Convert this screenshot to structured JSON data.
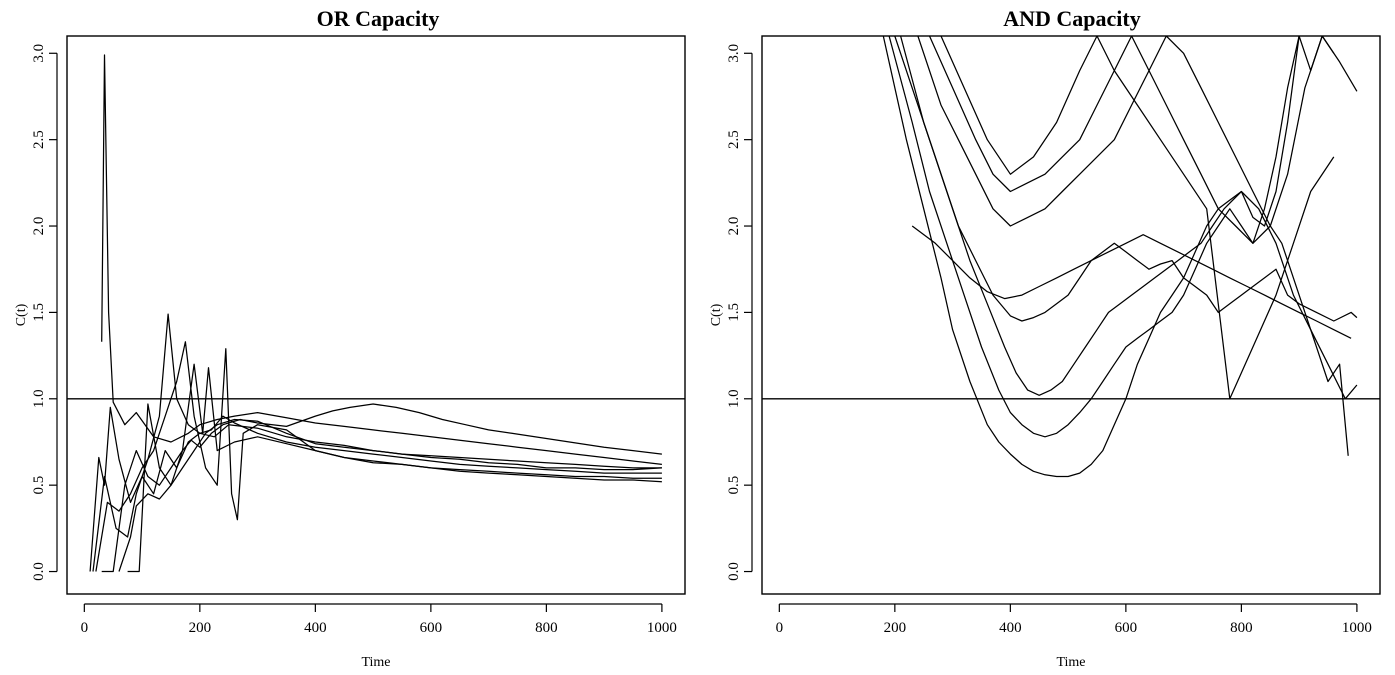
{
  "chart_data": [
    {
      "type": "line",
      "title": "OR Capacity",
      "xlabel": "Time",
      "ylabel": "C(t)",
      "xlim": [
        -30,
        1040
      ],
      "ylim": [
        -0.13,
        3.1
      ],
      "xticks": [
        0,
        200,
        400,
        600,
        800,
        1000
      ],
      "xtick_labels": [
        "0",
        "200",
        "400",
        "600",
        "800",
        "1000"
      ],
      "yticks": [
        0,
        0.5,
        1,
        1.5,
        2,
        2.5,
        3
      ],
      "ytick_labels": [
        "0.0",
        "0.5",
        "1.0",
        "1.5",
        "2.0",
        "2.5",
        "3.0"
      ],
      "reference_line_y": 1.0,
      "grid": false,
      "series": [
        {
          "x": [
            30,
            35,
            42,
            50,
            70,
            90,
            120,
            150,
            180,
            200,
            230,
            260,
            300,
            350,
            400,
            450,
            500,
            550,
            600,
            650,
            700,
            750,
            800,
            850,
            900,
            950,
            1000
          ],
          "y": [
            1.33,
            2.99,
            1.5,
            0.98,
            0.85,
            0.92,
            0.78,
            0.75,
            0.8,
            0.85,
            0.88,
            0.9,
            0.92,
            0.89,
            0.86,
            0.84,
            0.82,
            0.8,
            0.78,
            0.76,
            0.74,
            0.72,
            0.7,
            0.68,
            0.66,
            0.64,
            0.62
          ]
        },
        {
          "x": [
            10,
            25,
            35,
            45,
            60,
            80,
            100,
            120,
            140,
            160,
            180,
            200,
            225,
            250,
            300,
            350,
            400,
            450,
            500,
            550,
            600,
            650,
            700,
            750,
            800,
            850,
            900,
            950,
            1000
          ],
          "y": [
            0,
            0.66,
            0.5,
            0.95,
            0.65,
            0.4,
            0.55,
            0.45,
            0.7,
            0.6,
            0.75,
            0.8,
            0.78,
            0.85,
            0.83,
            0.78,
            0.75,
            0.73,
            0.7,
            0.68,
            0.66,
            0.65,
            0.63,
            0.62,
            0.6,
            0.6,
            0.59,
            0.59,
            0.6
          ]
        },
        {
          "x": [
            15,
            35,
            55,
            75,
            90,
            110,
            130,
            145,
            160,
            180,
            200,
            220,
            240,
            260,
            300,
            350,
            400,
            450,
            500,
            550,
            600,
            650,
            700,
            750,
            800,
            850,
            900,
            950,
            1000
          ],
          "y": [
            0,
            0.55,
            0.25,
            0.2,
            0.45,
            0.65,
            0.9,
            1.49,
            1.0,
            0.85,
            0.8,
            0.82,
            0.9,
            0.86,
            0.8,
            0.75,
            0.72,
            0.7,
            0.68,
            0.66,
            0.64,
            0.62,
            0.61,
            0.6,
            0.59,
            0.58,
            0.57,
            0.57,
            0.57
          ]
        },
        {
          "x": [
            20,
            40,
            60,
            80,
            100,
            120,
            140,
            160,
            175,
            190,
            210,
            230,
            245,
            255,
            265,
            275,
            300,
            350,
            400,
            450,
            500,
            550,
            600,
            650,
            700,
            750,
            800,
            850,
            900,
            950,
            1000
          ],
          "y": [
            0,
            0.4,
            0.35,
            0.45,
            0.6,
            0.7,
            0.9,
            1.1,
            1.33,
            0.9,
            0.6,
            0.5,
            1.29,
            0.45,
            0.3,
            0.8,
            0.85,
            0.82,
            0.7,
            0.66,
            0.63,
            0.62,
            0.6,
            0.59,
            0.58,
            0.57,
            0.56,
            0.55,
            0.55,
            0.54,
            0.54
          ]
        },
        {
          "x": [
            30,
            50,
            70,
            90,
            110,
            130,
            150,
            170,
            190,
            205,
            215,
            230,
            260,
            300,
            350,
            400,
            450,
            500,
            550,
            600,
            650,
            700,
            750,
            800,
            850,
            900,
            950,
            1000
          ],
          "y": [
            0,
            0,
            0.5,
            0.7,
            0.55,
            0.5,
            0.6,
            0.7,
            1.2,
            0.8,
            1.18,
            0.7,
            0.75,
            0.78,
            0.74,
            0.7,
            0.66,
            0.64,
            0.62,
            0.6,
            0.58,
            0.57,
            0.56,
            0.55,
            0.54,
            0.53,
            0.53,
            0.52
          ]
        },
        {
          "x": [
            60,
            80,
            90,
            110,
            130,
            150,
            170,
            190,
            210,
            230,
            260,
            300,
            350,
            400,
            450,
            500,
            550,
            600,
            650,
            700,
            750,
            800,
            850,
            900,
            950,
            1000
          ],
          "y": [
            0,
            0.2,
            0.38,
            0.45,
            0.42,
            0.5,
            0.6,
            0.7,
            0.8,
            0.85,
            0.88,
            0.87,
            0.8,
            0.74,
            0.72,
            0.7,
            0.68,
            0.67,
            0.66,
            0.65,
            0.64,
            0.63,
            0.62,
            0.61,
            0.6,
            0.6
          ]
        },
        {
          "x": [
            75,
            95,
            110,
            130,
            150,
            170,
            185,
            200,
            220,
            240,
            270,
            300,
            350,
            400,
            430,
            460,
            500,
            540,
            580,
            620,
            660,
            700,
            740,
            780,
            820,
            860,
            900,
            950,
            1000
          ],
          "y": [
            0,
            0,
            0.97,
            0.6,
            0.5,
            0.7,
            0.76,
            0.72,
            0.8,
            0.85,
            0.88,
            0.86,
            0.84,
            0.9,
            0.93,
            0.95,
            0.97,
            0.95,
            0.92,
            0.88,
            0.85,
            0.82,
            0.8,
            0.78,
            0.76,
            0.74,
            0.72,
            0.7,
            0.68
          ]
        }
      ]
    },
    {
      "type": "line",
      "title": "AND Capacity",
      "xlabel": "Time",
      "ylabel": "C(t)",
      "xlim": [
        -30,
        1040
      ],
      "ylim": [
        -0.13,
        3.1
      ],
      "xticks": [
        0,
        200,
        400,
        600,
        800,
        1000
      ],
      "xtick_labels": [
        "0",
        "200",
        "400",
        "600",
        "800",
        "1000"
      ],
      "yticks": [
        0,
        0.5,
        1,
        1.5,
        2,
        2.5,
        3
      ],
      "ytick_labels": [
        "0.0",
        "0.5",
        "1.0",
        "1.5",
        "2.0",
        "2.5",
        "3.0"
      ],
      "reference_line_y": 1.0,
      "grid": false,
      "series": [
        {
          "x": [
            180,
            220,
            250,
            280,
            300,
            330,
            360,
            380,
            400,
            420,
            440,
            460,
            480,
            500,
            520,
            540,
            560,
            580,
            600,
            620,
            640,
            660,
            680,
            700,
            720,
            740,
            760,
            780,
            800,
            820,
            840,
            860,
            880,
            900,
            920,
            940,
            960
          ],
          "y": [
            3.1,
            2.5,
            2.1,
            1.7,
            1.4,
            1.1,
            0.85,
            0.75,
            0.68,
            0.62,
            0.58,
            0.56,
            0.55,
            0.55,
            0.57,
            0.62,
            0.7,
            0.85,
            1.0,
            1.2,
            1.35,
            1.5,
            1.6,
            1.7,
            1.85,
            2.0,
            2.1,
            2.15,
            2.2,
            2.05,
            2.0,
            2.2,
            2.6,
            3.1,
            2.9,
            3.1,
            3.0
          ]
        },
        {
          "x": [
            190,
            230,
            260,
            290,
            320,
            350,
            380,
            400,
            420,
            440,
            460,
            480,
            500,
            520,
            540,
            560,
            580,
            600,
            620,
            640,
            660,
            680,
            700,
            720,
            740,
            760,
            780,
            800,
            820,
            840,
            860,
            880,
            900
          ],
          "y": [
            3.1,
            2.6,
            2.2,
            1.9,
            1.6,
            1.3,
            1.05,
            0.92,
            0.85,
            0.8,
            0.78,
            0.8,
            0.85,
            0.92,
            1.0,
            1.1,
            1.2,
            1.3,
            1.35,
            1.4,
            1.45,
            1.5,
            1.6,
            1.75,
            1.9,
            2.0,
            2.1,
            2.0,
            1.9,
            2.1,
            2.4,
            2.8,
            3.1
          ]
        },
        {
          "x": [
            200,
            240,
            270,
            300,
            330,
            360,
            390,
            410,
            430,
            450,
            470,
            490,
            510,
            530,
            550,
            570,
            590,
            610,
            630,
            650,
            670,
            690,
            710,
            730,
            750,
            770,
            800,
            830,
            860,
            890,
            920,
            950,
            970,
            985
          ],
          "y": [
            3.1,
            2.7,
            2.4,
            2.1,
            1.8,
            1.55,
            1.3,
            1.15,
            1.05,
            1.02,
            1.05,
            1.1,
            1.2,
            1.3,
            1.4,
            1.5,
            1.55,
            1.6,
            1.65,
            1.7,
            1.75,
            1.8,
            1.85,
            1.9,
            2.0,
            2.1,
            2.2,
            2.1,
            1.9,
            1.6,
            1.4,
            1.1,
            1.2,
            0.67
          ]
        },
        {
          "x": [
            210,
            250,
            280,
            310,
            340,
            370,
            400,
            420,
            440,
            460,
            480,
            500,
            520,
            540,
            560,
            580,
            600,
            620,
            640,
            660,
            680,
            700,
            720,
            740,
            760,
            780,
            800,
            820,
            840,
            860,
            880,
            900,
            930,
            960,
            990,
            1000
          ],
          "y": [
            3.1,
            2.6,
            2.3,
            2.0,
            1.8,
            1.6,
            1.48,
            1.45,
            1.47,
            1.5,
            1.55,
            1.6,
            1.7,
            1.8,
            1.85,
            1.9,
            1.85,
            1.8,
            1.75,
            1.78,
            1.8,
            1.7,
            1.65,
            1.6,
            1.5,
            1.55,
            1.6,
            1.65,
            1.7,
            1.75,
            1.6,
            1.55,
            1.5,
            1.45,
            1.5,
            1.47
          ]
        },
        {
          "x": [
            230,
            270,
            300,
            330,
            360,
            390,
            420,
            450,
            480,
            510,
            540,
            570,
            600,
            630,
            660,
            690,
            720,
            750,
            780,
            810,
            840,
            870,
            900,
            930,
            960,
            990
          ],
          "y": [
            2.0,
            1.9,
            1.8,
            1.7,
            1.62,
            1.58,
            1.6,
            1.65,
            1.7,
            1.75,
            1.8,
            1.85,
            1.9,
            1.95,
            1.9,
            1.85,
            1.8,
            1.75,
            1.7,
            1.65,
            1.6,
            1.55,
            1.5,
            1.45,
            1.4,
            1.35
          ]
        },
        {
          "x": [
            240,
            280,
            310,
            340,
            370,
            400,
            430,
            460,
            490,
            520,
            550,
            580,
            610,
            640,
            670,
            700,
            730,
            760,
            790,
            820,
            850,
            870,
            890,
            920,
            950,
            980,
            1000
          ],
          "y": [
            3.1,
            2.7,
            2.5,
            2.3,
            2.1,
            2.0,
            2.05,
            2.1,
            2.2,
            2.3,
            2.4,
            2.5,
            2.7,
            2.9,
            3.1,
            3.0,
            2.8,
            2.6,
            2.4,
            2.2,
            2.0,
            1.9,
            1.7,
            1.4,
            1.2,
            1.0,
            1.08
          ]
        },
        {
          "x": [
            260,
            300,
            340,
            370,
            400,
            430,
            460,
            490,
            520,
            550,
            580,
            610,
            640,
            670,
            700,
            730,
            760,
            790,
            820,
            850,
            880,
            910,
            940,
            970,
            1000
          ],
          "y": [
            3.1,
            2.8,
            2.5,
            2.3,
            2.2,
            2.25,
            2.3,
            2.4,
            2.5,
            2.7,
            2.9,
            3.1,
            2.9,
            2.7,
            2.5,
            2.3,
            2.1,
            2.0,
            1.9,
            2.0,
            2.3,
            2.8,
            3.1,
            2.95,
            2.78
          ]
        },
        {
          "x": [
            280,
            320,
            360,
            400,
            440,
            480,
            520,
            550,
            580,
            620,
            660,
            700,
            740,
            780,
            820,
            860,
            890,
            920,
            960
          ],
          "y": [
            3.1,
            2.8,
            2.5,
            2.3,
            2.4,
            2.6,
            2.9,
            3.1,
            2.9,
            2.7,
            2.5,
            2.3,
            2.1,
            1.0,
            1.3,
            1.6,
            1.9,
            2.2,
            2.4
          ]
        }
      ]
    }
  ]
}
